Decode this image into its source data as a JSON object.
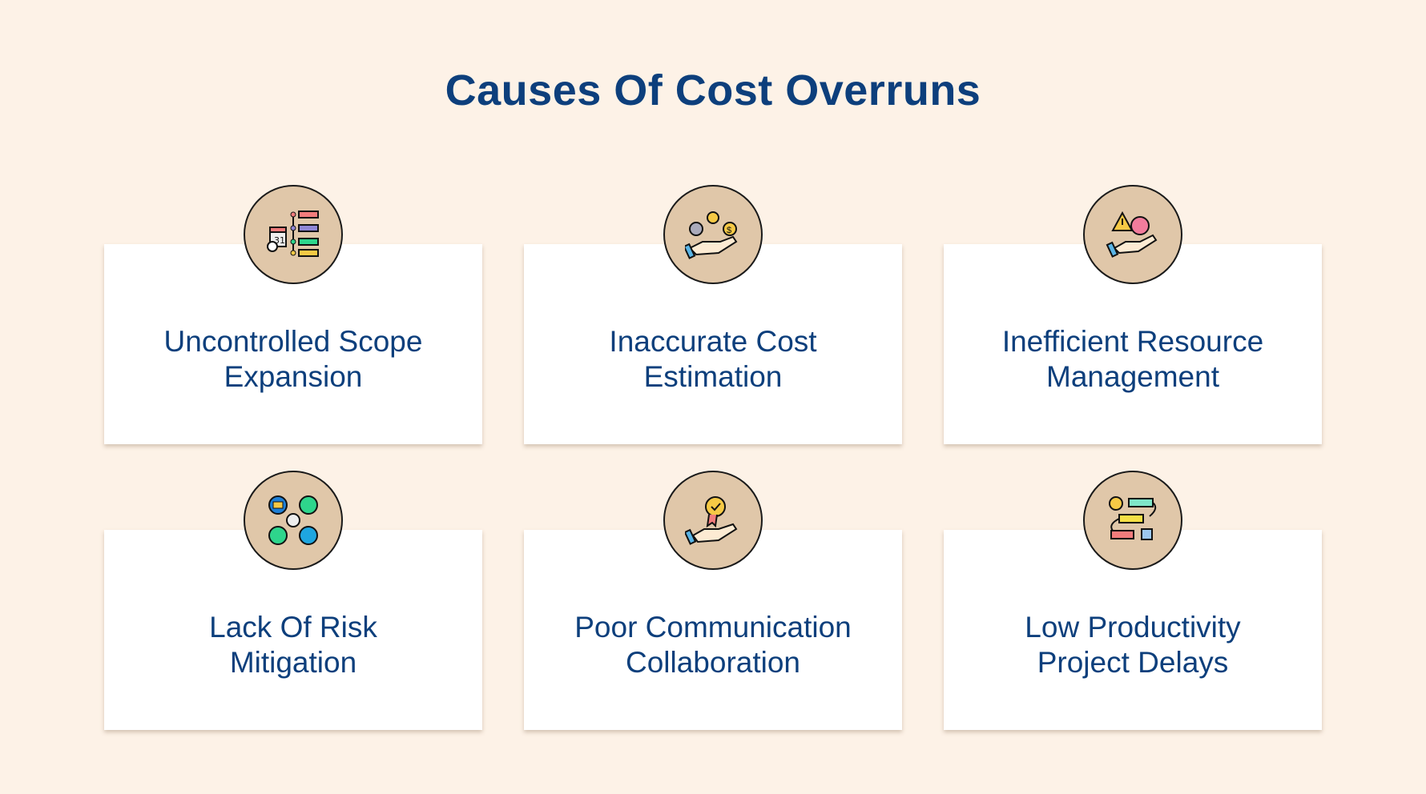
{
  "title": "Causes Of Cost Overruns",
  "items": [
    {
      "line1": "Uncontrolled Scope",
      "line2": "Expansion",
      "icon": "timeline-calendar-icon"
    },
    {
      "line1": "Inaccurate Cost",
      "line2": "Estimation",
      "icon": "hand-cost-gear-icon"
    },
    {
      "line1": "Inefficient Resource",
      "line2": "Management",
      "icon": "hand-warning-gear-icon"
    },
    {
      "line1": "Lack Of Risk",
      "line2": "Mitigation",
      "icon": "communication-network-icon"
    },
    {
      "line1": "Poor Communication",
      "line2": "Collaboration",
      "icon": "hand-award-badge-icon"
    },
    {
      "line1": "Low Productivity",
      "line2": "Project Delays",
      "icon": "workflow-gear-icon"
    }
  ],
  "colors": {
    "background": "#fdf2e7",
    "title": "#0d3f7c",
    "circle": "#e0c7a9"
  }
}
